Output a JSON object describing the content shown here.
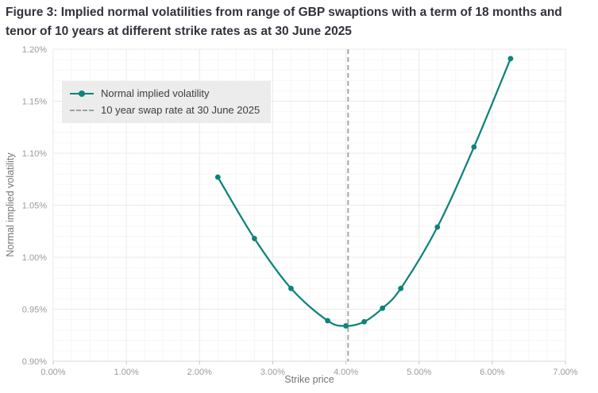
{
  "chart_data": {
    "type": "line",
    "title": "Figure 3: Implied normal volatilities from range of GBP swaptions with a term of 18 months and tenor of 10 years at different strike rates as at 30 June 2025",
    "xlabel": "Strike price",
    "ylabel": "Normal implied volatility",
    "x": [
      2.25,
      2.75,
      3.25,
      3.75,
      4.0,
      4.25,
      4.5,
      4.75,
      5.25,
      5.75,
      6.25
    ],
    "series": [
      {
        "name": "Normal implied volatility",
        "values": [
          1.077,
          1.018,
          0.97,
          0.939,
          0.934,
          0.938,
          0.951,
          0.97,
          1.029,
          1.106,
          1.191
        ]
      }
    ],
    "reference_line": {
      "label": "10 year swap rate at 30 June 2025",
      "x": 4.03,
      "style": "dashed"
    },
    "xlim": [
      0,
      7
    ],
    "ylim": [
      0.9,
      1.2
    ],
    "x_ticks": {
      "values": [
        0,
        1,
        2,
        3,
        4,
        5,
        6,
        7
      ],
      "labels": [
        "0.00%",
        "1.00%",
        "2.00%",
        "3.00%",
        "4.00%",
        "5.00%",
        "6.00%",
        "7.00%"
      ]
    },
    "y_ticks": {
      "values": [
        0.9,
        0.95,
        1.0,
        1.05,
        1.1,
        1.15,
        1.2
      ],
      "labels": [
        "0.90%",
        "0.95%",
        "1.00%",
        "1.05%",
        "1.10%",
        "1.15%",
        "1.20%"
      ]
    },
    "grid": true,
    "minor_grid": {
      "x_step": 0.25,
      "y_step": 0.01
    },
    "legend_position": "top-left",
    "colors": {
      "series": "#0e837b",
      "reference_line": "#a6a6a6",
      "major_grid": "#eaeaea",
      "minor_grid": "#f6f6f6",
      "axis_line": "#d9d9d9",
      "tick_label": "#9b9b9b",
      "title": "#32323c",
      "legend_background": "#ececec"
    }
  }
}
